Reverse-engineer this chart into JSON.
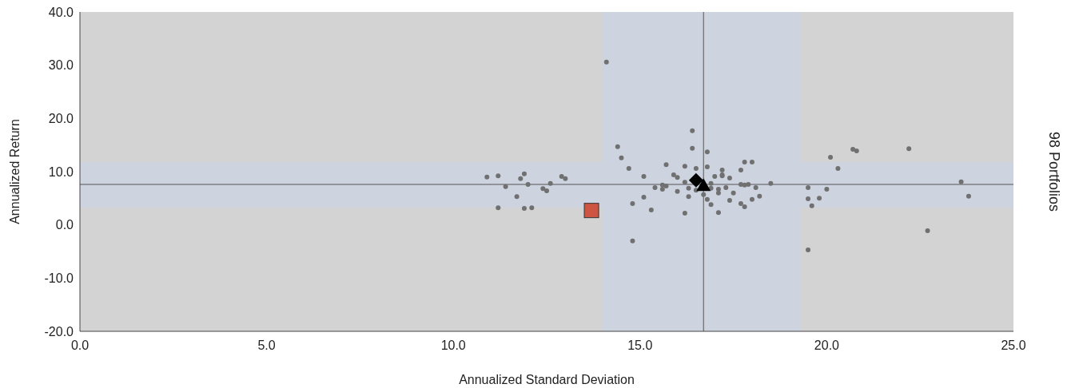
{
  "chart_data": {
    "type": "scatter",
    "xlabel": "Annualized Standard Deviation",
    "ylabel": "Annualized Return",
    "y2label": "98 Portfolios",
    "xlim": [
      0,
      25
    ],
    "xticks": [
      {
        "value": 0,
        "label": "0.0"
      },
      {
        "value": 5,
        "label": "5.0"
      },
      {
        "value": 10,
        "label": "10.0"
      },
      {
        "value": 15,
        "label": "15.0"
      },
      {
        "value": 20,
        "label": "20.0"
      },
      {
        "value": 25,
        "label": "25.0"
      }
    ],
    "ylim": [
      -20,
      40
    ],
    "yticks": [
      {
        "value": -20,
        "label": "-20.0"
      },
      {
        "value": -10,
        "label": "-10.0"
      },
      {
        "value": 0,
        "label": "0.0"
      },
      {
        "value": 10,
        "label": "10.0"
      },
      {
        "value": 20,
        "label": "20.0"
      },
      {
        "value": 30,
        "label": "30.0"
      },
      {
        "value": 40,
        "label": "40.0"
      }
    ],
    "bands": [
      {
        "axis": "x",
        "from": 14.0,
        "to": 19.3,
        "color": "#cdd4e0"
      },
      {
        "axis": "y",
        "from": 3.2,
        "to": 11.8,
        "color": "#cdd4e0"
      }
    ],
    "ref_lines": [
      {
        "axis": "x",
        "value": 16.7,
        "color": "#555555"
      },
      {
        "axis": "y",
        "value": 7.6,
        "color": "#555555"
      }
    ],
    "grid": false,
    "series": [
      {
        "marker": "circle",
        "color": "#707070",
        "x": [
          10.9,
          11.2,
          11.4,
          11.8,
          11.9,
          12.0,
          11.7,
          11.2,
          11.9,
          12.1,
          12.9,
          13.0,
          12.4,
          12.5,
          12.6,
          14.1,
          14.4,
          14.5,
          14.7,
          15.1,
          15.1,
          14.8,
          15.3,
          14.8,
          15.4,
          15.6,
          15.6,
          15.7,
          16.4,
          16.4,
          16.8,
          15.7,
          16.2,
          16.5,
          16.8,
          15.9,
          16.0,
          16.2,
          16.0,
          16.3,
          16.5,
          16.3,
          16.2,
          16.7,
          16.8,
          16.9,
          16.9,
          16.9,
          17.1,
          17.1,
          17.0,
          17.2,
          17.2,
          17.2,
          17.4,
          17.3,
          17.5,
          17.4,
          17.1,
          17.7,
          17.8,
          18.0,
          17.7,
          17.8,
          17.9,
          18.1,
          17.7,
          17.8,
          18.0,
          18.2,
          18.5,
          19.5,
          19.5,
          19.6,
          19.5,
          20.1,
          20.3,
          20.7,
          20.8,
          22.2,
          20.0,
          19.8,
          22.7,
          23.6,
          23.8
        ],
        "values": [
          9.0,
          9.2,
          7.2,
          8.7,
          9.6,
          7.6,
          5.3,
          3.2,
          3.1,
          3.2,
          9.1,
          8.7,
          6.8,
          6.4,
          7.8,
          30.6,
          14.7,
          12.6,
          10.6,
          9.1,
          5.2,
          4.0,
          2.8,
          -3.0,
          7.0,
          7.5,
          6.7,
          7.3,
          17.7,
          14.4,
          13.7,
          11.3,
          11.0,
          10.6,
          10.9,
          9.4,
          8.9,
          8.0,
          6.3,
          6.9,
          6.5,
          5.3,
          2.2,
          5.7,
          4.8,
          3.8,
          7.8,
          6.9,
          6.7,
          6.0,
          9.1,
          10.3,
          9.2,
          9.4,
          8.8,
          7.0,
          6.0,
          4.6,
          2.3,
          10.3,
          11.8,
          11.8,
          7.6,
          7.5,
          7.6,
          7.0,
          4.0,
          3.4,
          4.8,
          5.4,
          7.8,
          7.0,
          4.9,
          3.6,
          -4.7,
          12.7,
          10.6,
          14.2,
          13.9,
          14.3,
          6.7,
          5.0,
          -1.1,
          8.1,
          5.4
        ]
      },
      {
        "marker": "square",
        "color": "#cd5542",
        "x": [
          13.7
        ],
        "values": [
          2.7
        ]
      },
      {
        "marker": "diamond",
        "color": "#000000",
        "x": [
          16.5
        ],
        "values": [
          8.4
        ]
      },
      {
        "marker": "triangle",
        "color": "#000000",
        "x": [
          16.7
        ],
        "values": [
          7.4
        ]
      }
    ]
  }
}
